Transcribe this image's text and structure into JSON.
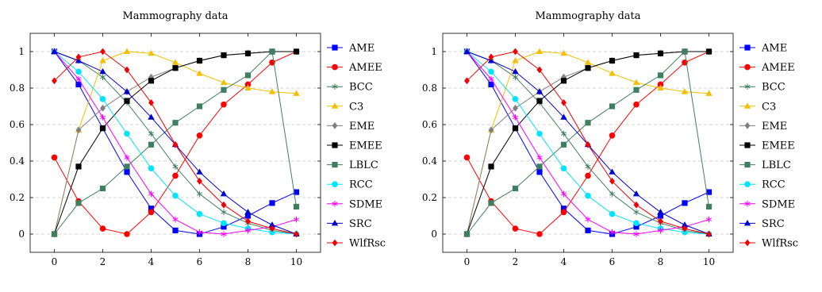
{
  "chart_data": [
    {
      "type": "line",
      "title": "Mammography data",
      "xlabel": "",
      "ylabel": "",
      "xlim": [
        -1,
        11
      ],
      "ylim": [
        -0.1,
        1.1
      ],
      "xticks": [
        "0",
        "2",
        "4",
        "6",
        "8",
        "10"
      ],
      "yticks": [
        "0",
        "0.2",
        "0.4",
        "0.6",
        "0.8",
        "1"
      ],
      "grid": "horizontal-dashed",
      "legend_position": "outside-right",
      "x": [
        0,
        1,
        2,
        3,
        4,
        5,
        6,
        7,
        8,
        9,
        10
      ],
      "series": [
        {
          "name": "AME",
          "color": "#0000ff",
          "marker": "square",
          "values": [
            1,
            0.82,
            0.58,
            0.34,
            0.14,
            0.02,
            0.0,
            0.04,
            0.1,
            0.17,
            0.23
          ]
        },
        {
          "name": "AMEE",
          "color": "#ff0000",
          "marker": "circle",
          "values": [
            0.42,
            0.18,
            0.03,
            0.0,
            0.12,
            0.32,
            0.54,
            0.71,
            0.82,
            0.94,
            1.0
          ]
        },
        {
          "name": "BCC",
          "color": "#3f7f5f",
          "marker": "asterisk",
          "values": [
            1,
            0.95,
            0.86,
            0.72,
            0.55,
            0.37,
            0.22,
            0.12,
            0.06,
            0.02,
            0.0
          ]
        },
        {
          "name": "C3",
          "color": "#f2c000",
          "marker": "triangle",
          "values": [
            0.0,
            0.57,
            0.95,
            1.0,
            0.99,
            0.94,
            0.88,
            0.83,
            0.8,
            0.78,
            0.77
          ]
        },
        {
          "name": "EME",
          "color": "#808080",
          "marker": "diamond",
          "values": [
            0.0,
            0.57,
            0.69,
            0.78,
            0.86,
            0.91,
            0.95,
            0.98,
            0.99,
            1.0,
            1.0
          ]
        },
        {
          "name": "EMEE",
          "color": "#000000",
          "marker": "square",
          "values": [
            0.0,
            0.37,
            0.58,
            0.73,
            0.84,
            0.91,
            0.95,
            0.98,
            0.99,
            1.0,
            1.0
          ]
        },
        {
          "name": "LBLC",
          "color": "#3f7f5f",
          "marker": "square",
          "values": [
            0.0,
            0.17,
            0.25,
            0.37,
            0.49,
            0.61,
            0.7,
            0.79,
            0.87,
            1.0,
            0.15
          ]
        },
        {
          "name": "RCC",
          "color": "#00e5ff",
          "marker": "circle",
          "values": [
            1,
            0.89,
            0.74,
            0.55,
            0.36,
            0.21,
            0.11,
            0.06,
            0.03,
            0.01,
            0.0
          ]
        },
        {
          "name": "SDME",
          "color": "#ff00ff",
          "marker": "asterisk",
          "values": [
            1,
            0.85,
            0.64,
            0.42,
            0.22,
            0.08,
            0.01,
            0.0,
            0.02,
            0.04,
            0.08
          ]
        },
        {
          "name": "SRC",
          "color": "#0000cc",
          "marker": "triangle",
          "values": [
            1,
            0.95,
            0.89,
            0.78,
            0.64,
            0.49,
            0.34,
            0.22,
            0.12,
            0.05,
            0.0
          ]
        },
        {
          "name": "WlfRsc",
          "color": "#ee0000",
          "marker": "diamond",
          "values": [
            0.84,
            0.97,
            1.0,
            0.9,
            0.72,
            0.49,
            0.29,
            0.16,
            0.07,
            0.03,
            0.0
          ]
        }
      ]
    },
    {
      "type": "line",
      "title": "Mammography data",
      "xlabel": "",
      "ylabel": "",
      "xlim": [
        -1,
        11
      ],
      "ylim": [
        -0.1,
        1.1
      ],
      "xticks": [
        "0",
        "2",
        "4",
        "6",
        "8",
        "10"
      ],
      "yticks": [
        "0",
        "0.2",
        "0.4",
        "0.6",
        "0.8",
        "1"
      ],
      "grid": "horizontal-dashed",
      "legend_position": "outside-right",
      "x": [
        0,
        1,
        2,
        3,
        4,
        5,
        6,
        7,
        8,
        9,
        10
      ],
      "series": [
        {
          "name": "AME",
          "color": "#0000ff",
          "marker": "square",
          "values": [
            1,
            0.82,
            0.58,
            0.34,
            0.14,
            0.02,
            0.0,
            0.04,
            0.1,
            0.17,
            0.23
          ]
        },
        {
          "name": "AMEE",
          "color": "#ff0000",
          "marker": "circle",
          "values": [
            0.42,
            0.18,
            0.03,
            0.0,
            0.12,
            0.32,
            0.54,
            0.71,
            0.82,
            0.94,
            1.0
          ]
        },
        {
          "name": "BCC",
          "color": "#3f7f5f",
          "marker": "asterisk",
          "values": [
            1,
            0.95,
            0.86,
            0.72,
            0.55,
            0.37,
            0.22,
            0.12,
            0.06,
            0.02,
            0.0
          ]
        },
        {
          "name": "C3",
          "color": "#f2c000",
          "marker": "triangle",
          "values": [
            0.0,
            0.57,
            0.95,
            1.0,
            0.99,
            0.94,
            0.88,
            0.83,
            0.8,
            0.78,
            0.77
          ]
        },
        {
          "name": "EME",
          "color": "#808080",
          "marker": "diamond",
          "values": [
            0.0,
            0.57,
            0.69,
            0.78,
            0.86,
            0.91,
            0.95,
            0.98,
            0.99,
            1.0,
            1.0
          ]
        },
        {
          "name": "EMEE",
          "color": "#000000",
          "marker": "square",
          "values": [
            0.0,
            0.37,
            0.58,
            0.73,
            0.84,
            0.91,
            0.95,
            0.98,
            0.99,
            1.0,
            1.0
          ]
        },
        {
          "name": "LBLC",
          "color": "#3f7f5f",
          "marker": "square",
          "values": [
            0.0,
            0.17,
            0.25,
            0.37,
            0.49,
            0.61,
            0.7,
            0.79,
            0.87,
            1.0,
            0.15
          ]
        },
        {
          "name": "RCC",
          "color": "#00e5ff",
          "marker": "circle",
          "values": [
            1,
            0.89,
            0.74,
            0.55,
            0.36,
            0.21,
            0.11,
            0.06,
            0.03,
            0.01,
            0.0
          ]
        },
        {
          "name": "SDME",
          "color": "#ff00ff",
          "marker": "asterisk",
          "values": [
            1,
            0.85,
            0.64,
            0.42,
            0.22,
            0.08,
            0.01,
            0.0,
            0.02,
            0.04,
            0.08
          ]
        },
        {
          "name": "SRC",
          "color": "#0000cc",
          "marker": "triangle",
          "values": [
            1,
            0.95,
            0.89,
            0.78,
            0.64,
            0.49,
            0.34,
            0.22,
            0.12,
            0.05,
            0.0
          ]
        },
        {
          "name": "WlfRsc",
          "color": "#ee0000",
          "marker": "diamond",
          "values": [
            0.84,
            0.97,
            1.0,
            0.9,
            0.72,
            0.49,
            0.29,
            0.16,
            0.07,
            0.03,
            0.0
          ]
        }
      ]
    }
  ]
}
